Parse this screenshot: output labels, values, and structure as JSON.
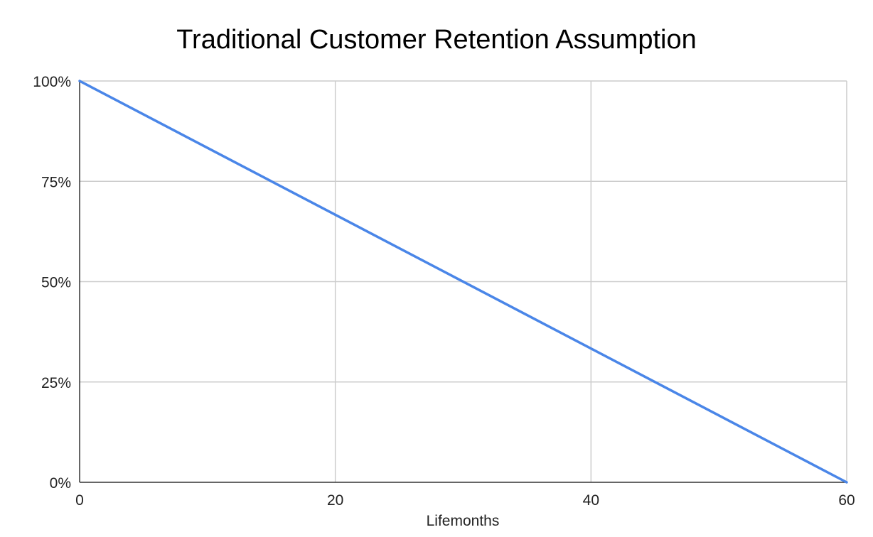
{
  "chart_data": {
    "type": "line",
    "title": "Traditional Customer Retention Assumption",
    "xlabel": "Lifemonths",
    "ylabel": "",
    "xlim": [
      0,
      60
    ],
    "ylim": [
      0,
      1
    ],
    "x_ticks": [
      0,
      20,
      40,
      60
    ],
    "x_tick_labels": [
      "0",
      "20",
      "40",
      "60"
    ],
    "y_ticks": [
      0,
      0.25,
      0.5,
      0.75,
      1
    ],
    "y_tick_labels": [
      "0%",
      "25%",
      "50%",
      "75%",
      "100%"
    ],
    "grid": true,
    "legend": "none",
    "series": [
      {
        "color": "#4a86e8",
        "x": [
          0,
          60
        ],
        "y": [
          1,
          0
        ]
      }
    ]
  },
  "colors": {
    "grid": "#cccccc",
    "axis": "#333333",
    "line": "#4a86e8"
  }
}
